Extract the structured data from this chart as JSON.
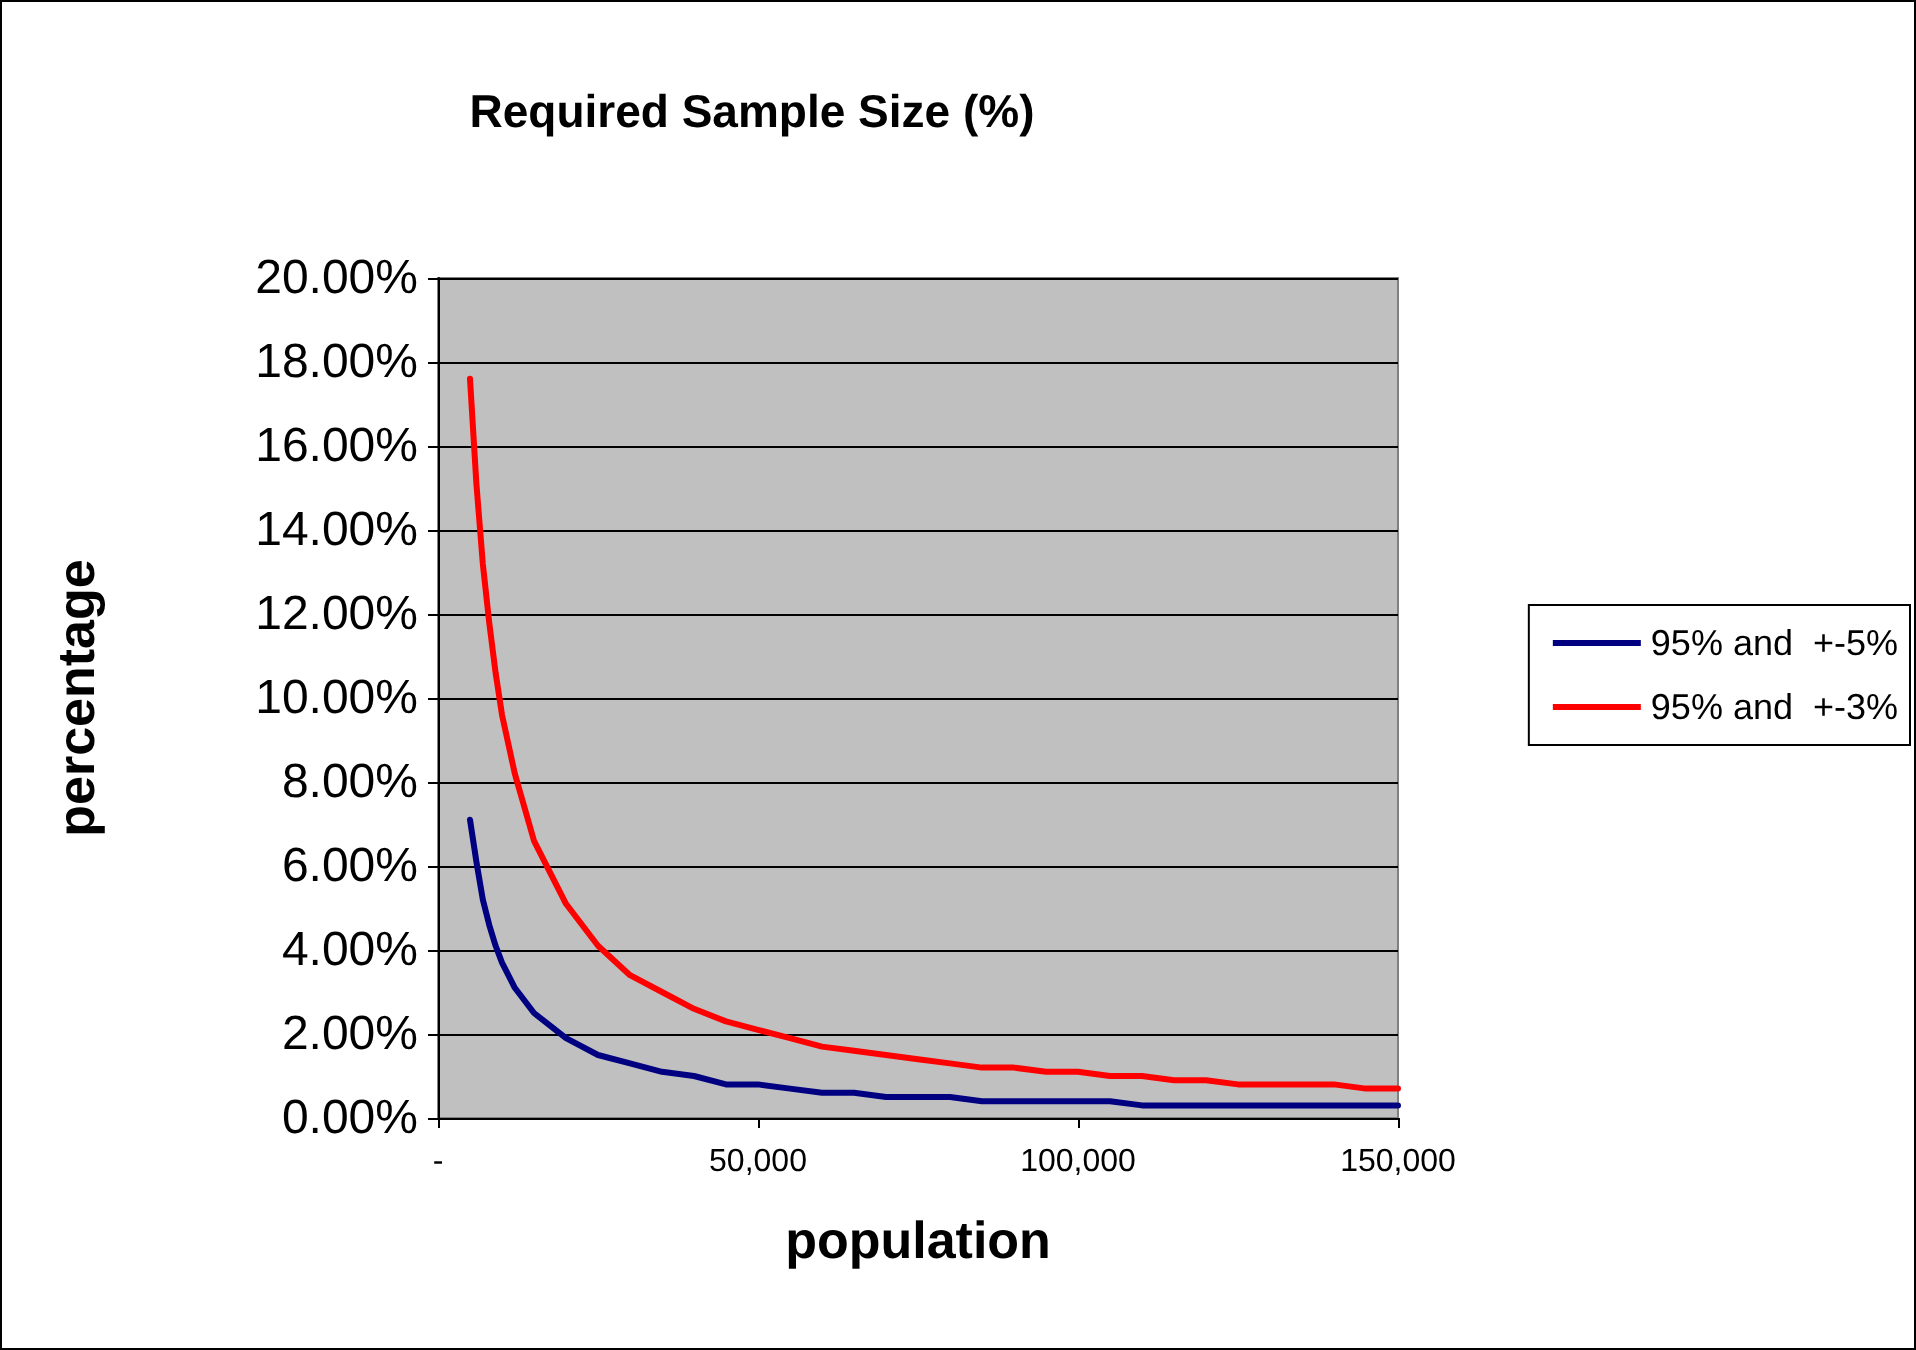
{
  "chart_data": {
    "type": "line",
    "title": "Required Sample Size (%)",
    "xlabel": "population",
    "ylabel": "percentage",
    "x": [
      5000,
      6000,
      7000,
      8000,
      9000,
      10000,
      12000,
      15000,
      20000,
      25000,
      30000,
      35000,
      40000,
      45000,
      50000,
      55000,
      60000,
      65000,
      70000,
      75000,
      80000,
      85000,
      90000,
      95000,
      100000,
      105000,
      110000,
      115000,
      120000,
      125000,
      130000,
      135000,
      140000,
      145000,
      150000
    ],
    "series": [
      {
        "name": "95% and  +-5%",
        "color": "#000080",
        "values": [
          7.1,
          6.1,
          5.2,
          4.6,
          4.1,
          3.7,
          3.1,
          2.5,
          1.9,
          1.5,
          1.3,
          1.1,
          1.0,
          0.8,
          0.8,
          0.7,
          0.6,
          0.6,
          0.5,
          0.5,
          0.5,
          0.4,
          0.4,
          0.4,
          0.4,
          0.4,
          0.3,
          0.3,
          0.3,
          0.3,
          0.3,
          0.3,
          0.3,
          0.3,
          0.3
        ]
      },
      {
        "name": "95% and  +-3%",
        "color": "#ff0000",
        "values": [
          17.6,
          15.1,
          13.2,
          11.8,
          10.6,
          9.6,
          8.2,
          6.6,
          5.1,
          4.1,
          3.4,
          3.0,
          2.6,
          2.3,
          2.1,
          1.9,
          1.7,
          1.6,
          1.5,
          1.4,
          1.3,
          1.2,
          1.2,
          1.1,
          1.1,
          1.0,
          1.0,
          0.9,
          0.9,
          0.8,
          0.8,
          0.8,
          0.8,
          0.7,
          0.7
        ]
      }
    ],
    "xlim": [
      0,
      150000
    ],
    "xticks": [
      {
        "value": 0,
        "label": "-"
      },
      {
        "value": 50000,
        "label": "50,000"
      },
      {
        "value": 100000,
        "label": "100,000"
      },
      {
        "value": 150000,
        "label": "150,000"
      }
    ],
    "ylim": [
      0,
      20
    ],
    "yticks": [
      {
        "value": 0,
        "label": "0.00%"
      },
      {
        "value": 2,
        "label": "2.00%"
      },
      {
        "value": 4,
        "label": "4.00%"
      },
      {
        "value": 6,
        "label": "6.00%"
      },
      {
        "value": 8,
        "label": "8.00%"
      },
      {
        "value": 10,
        "label": "10.00%"
      },
      {
        "value": 12,
        "label": "12.00%"
      },
      {
        "value": 14,
        "label": "14.00%"
      },
      {
        "value": 16,
        "label": "16.00%"
      },
      {
        "value": 18,
        "label": "18.00%"
      },
      {
        "value": 20,
        "label": "20.00%"
      }
    ],
    "grid": "y",
    "legend": "right",
    "marker": "none",
    "line_style": "solid"
  }
}
